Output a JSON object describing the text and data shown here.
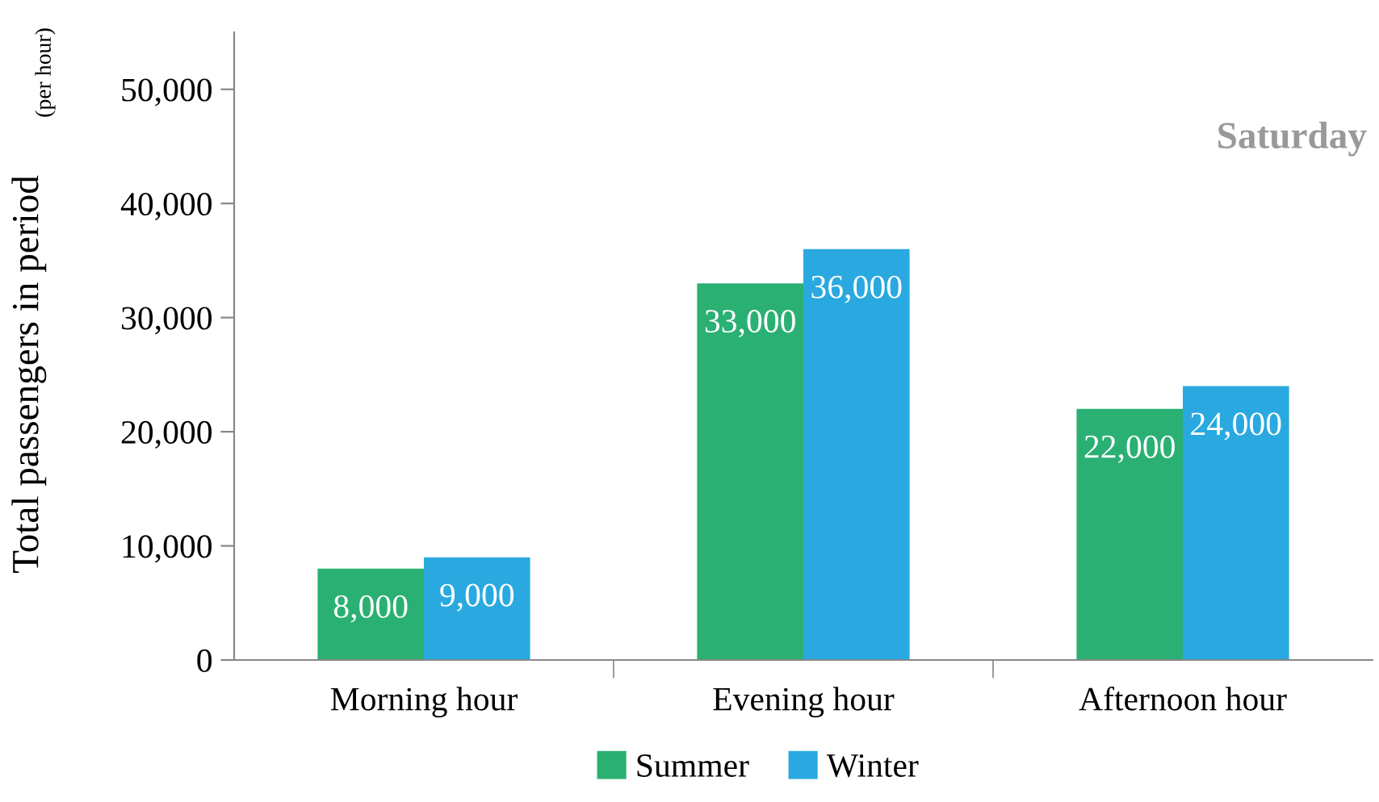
{
  "chart_data": {
    "type": "bar",
    "ylabel": "Total passengers in period",
    "annotations": [
      "(per hour)",
      "Saturday"
    ],
    "categories": [
      "Morning hour",
      "Evening hour",
      "Afternoon hour"
    ],
    "series": [
      {
        "name": "Summer",
        "color": "#2bb073",
        "values": [
          8000,
          33000,
          22000
        ],
        "value_labels": [
          "8,000",
          "33,000",
          "22,000"
        ]
      },
      {
        "name": "Winter",
        "color": "#29a9e0",
        "values": [
          9000,
          36000,
          24000
        ],
        "value_labels": [
          "9,000",
          "36,000",
          "24,000"
        ]
      }
    ],
    "ylim": [
      0,
      55000
    ],
    "yticks": [
      {
        "value": 0,
        "label": "0"
      },
      {
        "value": 10000,
        "label": "10,000"
      },
      {
        "value": 20000,
        "label": "20,000"
      },
      {
        "value": 30000,
        "label": "30,000"
      },
      {
        "value": 40000,
        "label": "40,000"
      },
      {
        "value": 50000,
        "label": "50,000"
      }
    ],
    "grid": false,
    "legend": "bottom"
  }
}
